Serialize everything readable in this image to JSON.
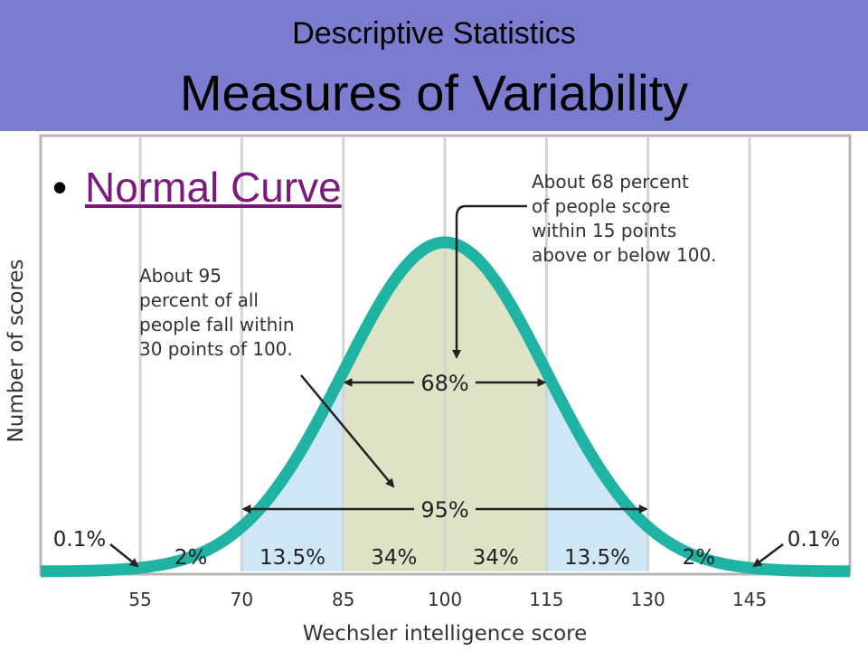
{
  "slide": {
    "subtitle": "Descriptive Statistics",
    "title": "Measures of Variability",
    "bullet": "Normal Curve"
  },
  "colors": {
    "header": "#7b7bcf",
    "curve": "#1fb3a3",
    "inner_fill": "#dde3c4",
    "outer_fill": "#cfe6f4",
    "gridline": "#d4d4d4",
    "link": "#7a1a7a"
  },
  "chart_data": {
    "type": "area",
    "xlabel": "Wechsler intelligence score",
    "ylabel": "Number of scores",
    "x_ticks": [
      "55",
      "70",
      "85",
      "100",
      "115",
      "130",
      "145"
    ],
    "xlim": [
      40,
      160
    ],
    "mean": 100,
    "sd": 15,
    "regions": [
      {
        "from": 40,
        "to": 55,
        "label": "0.1%"
      },
      {
        "from": 55,
        "to": 70,
        "label": "2%"
      },
      {
        "from": 70,
        "to": 85,
        "label": "13.5%"
      },
      {
        "from": 85,
        "to": 100,
        "label": "34%"
      },
      {
        "from": 100,
        "to": 115,
        "label": "34%"
      },
      {
        "from": 115,
        "to": 130,
        "label": "13.5%"
      },
      {
        "from": 130,
        "to": 145,
        "label": "2%"
      },
      {
        "from": 145,
        "to": 160,
        "label": "0.1%"
      }
    ],
    "spans": [
      {
        "from": 85,
        "to": 115,
        "label": "68%"
      },
      {
        "from": 70,
        "to": 130,
        "label": "95%"
      }
    ],
    "annotations": {
      "left": "About 95\npercent of all\npeople fall within\n30 points of 100.",
      "right": "About 68 percent\nof people score\nwithin 15 points\nabove or below 100."
    },
    "grid": true
  }
}
